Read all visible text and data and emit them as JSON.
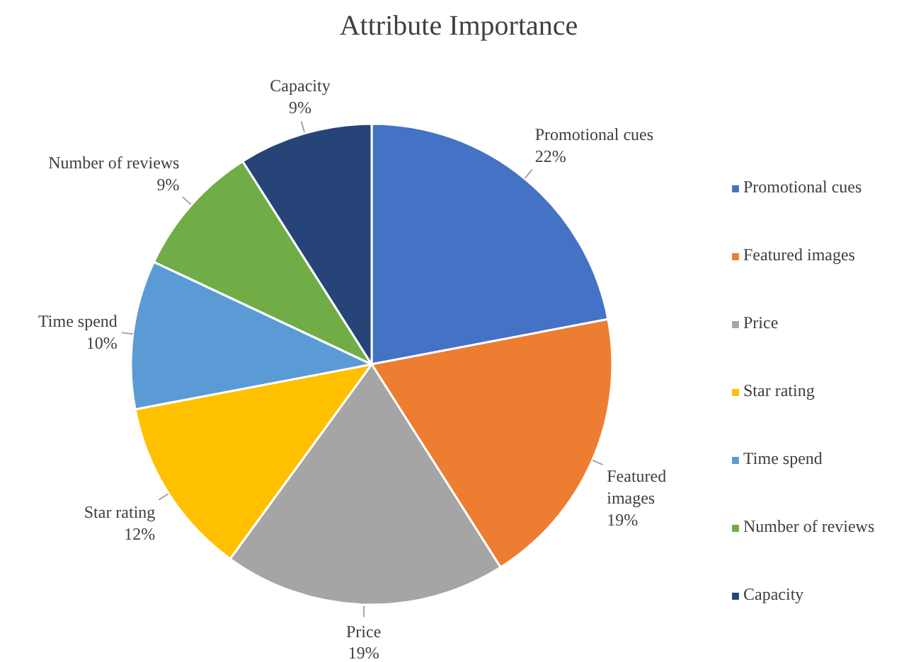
{
  "chart_data": {
    "type": "pie",
    "title": "Attribute Importance",
    "categories": [
      "Promotional cues",
      "Featured images",
      "Price",
      "Star rating",
      "Time spend",
      "Number of reviews",
      "Capacity"
    ],
    "values": [
      22,
      19,
      19,
      12,
      10,
      9,
      9
    ],
    "colors": [
      "#4472c4",
      "#ed7d31",
      "#a5a5a5",
      "#ffc000",
      "#5b9bd5",
      "#70ad47",
      "#264478"
    ],
    "value_labels": [
      "22%",
      "19%",
      "19%",
      "12%",
      "10%",
      "9%",
      "9%"
    ],
    "legend": "right"
  }
}
